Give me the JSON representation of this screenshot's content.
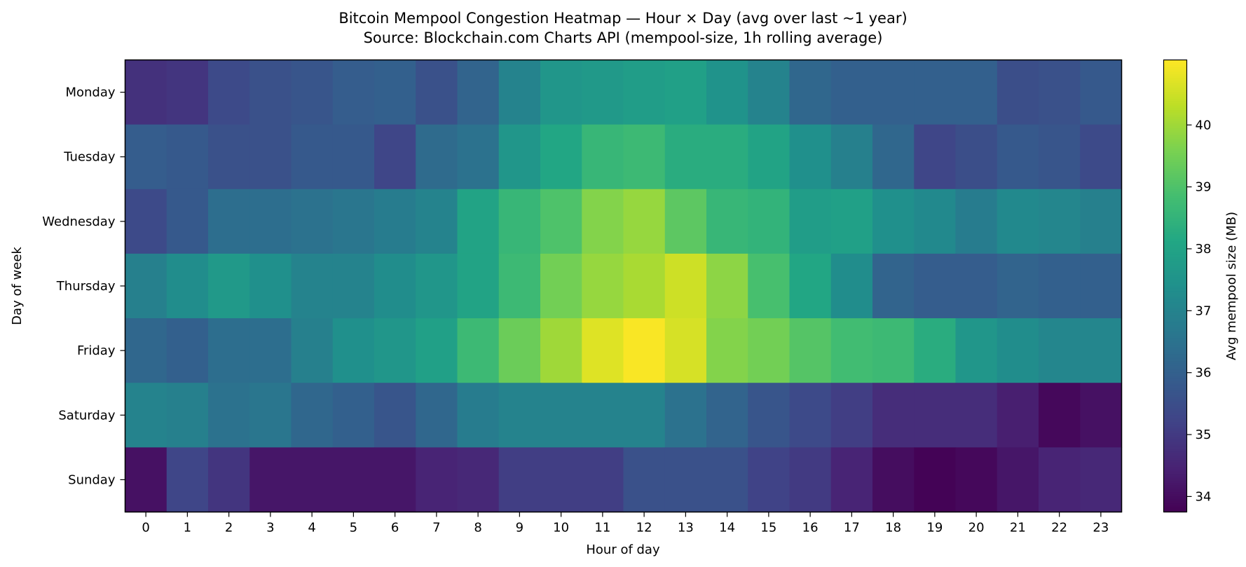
{
  "chart_data": {
    "type": "heatmap",
    "title": "Bitcoin Mempool Congestion Heatmap — Hour × Day (avg over last ~1 year)",
    "subtitle": "Source: Blockchain.com Charts API (mempool-size, 1h rolling average)",
    "xlabel": "Hour of day",
    "ylabel": "Day of week",
    "colorbar_label": "Avg mempool size (MB)",
    "colormap": "viridis",
    "x_categories": [
      "0",
      "1",
      "2",
      "3",
      "4",
      "5",
      "6",
      "7",
      "8",
      "9",
      "10",
      "11",
      "12",
      "13",
      "14",
      "15",
      "16",
      "17",
      "18",
      "19",
      "20",
      "21",
      "22",
      "23"
    ],
    "y_categories": [
      "Monday",
      "Tuesday",
      "Wednesday",
      "Thursday",
      "Friday",
      "Saturday",
      "Sunday"
    ],
    "vmin": 33.75,
    "vmax": 41.05,
    "colorbar_ticks": [
      34,
      35,
      36,
      37,
      38,
      39,
      40
    ],
    "values": [
      [
        34.8,
        34.9,
        35.4,
        35.6,
        35.7,
        35.9,
        36.0,
        35.6,
        36.1,
        37.0,
        37.6,
        37.7,
        37.8,
        37.9,
        37.5,
        37.0,
        36.2,
        36.0,
        36.0,
        36.0,
        36.0,
        35.5,
        35.6,
        35.8
      ],
      [
        35.9,
        35.8,
        35.6,
        35.6,
        35.8,
        35.8,
        35.3,
        36.3,
        36.5,
        37.6,
        38.1,
        38.6,
        38.7,
        38.3,
        38.3,
        38.0,
        37.4,
        36.9,
        36.2,
        35.3,
        35.5,
        35.8,
        35.7,
        35.4
      ],
      [
        35.4,
        35.8,
        36.4,
        36.4,
        36.5,
        36.6,
        36.8,
        37.0,
        38.0,
        38.6,
        39.0,
        39.7,
        39.9,
        39.2,
        38.6,
        38.5,
        37.8,
        37.9,
        37.4,
        37.2,
        36.8,
        37.2,
        37.1,
        36.9
      ],
      [
        36.9,
        37.3,
        37.7,
        37.4,
        37.0,
        37.0,
        37.3,
        37.6,
        38.0,
        38.7,
        39.5,
        39.9,
        40.1,
        40.5,
        39.8,
        38.9,
        38.1,
        37.3,
        36.1,
        35.9,
        35.9,
        36.1,
        36.0,
        36.0
      ],
      [
        36.2,
        36.0,
        36.4,
        36.4,
        36.9,
        37.4,
        37.6,
        37.9,
        38.7,
        39.4,
        40.0,
        40.7,
        41.0,
        40.6,
        39.7,
        39.5,
        39.1,
        38.8,
        38.7,
        38.3,
        37.6,
        37.3,
        37.1,
        37.1
      ],
      [
        37.0,
        36.9,
        36.5,
        36.6,
        36.2,
        36.0,
        35.7,
        36.2,
        36.8,
        37.0,
        37.0,
        37.0,
        37.0,
        36.5,
        36.1,
        35.7,
        35.4,
        35.1,
        34.7,
        34.7,
        34.7,
        34.4,
        33.9,
        34.1
      ],
      [
        34.1,
        35.3,
        34.9,
        34.2,
        34.2,
        34.2,
        34.2,
        34.5,
        34.6,
        35.1,
        35.1,
        35.1,
        35.6,
        35.6,
        35.6,
        35.2,
        35.0,
        34.5,
        34.0,
        33.8,
        33.9,
        34.2,
        34.5,
        34.6
      ]
    ]
  }
}
